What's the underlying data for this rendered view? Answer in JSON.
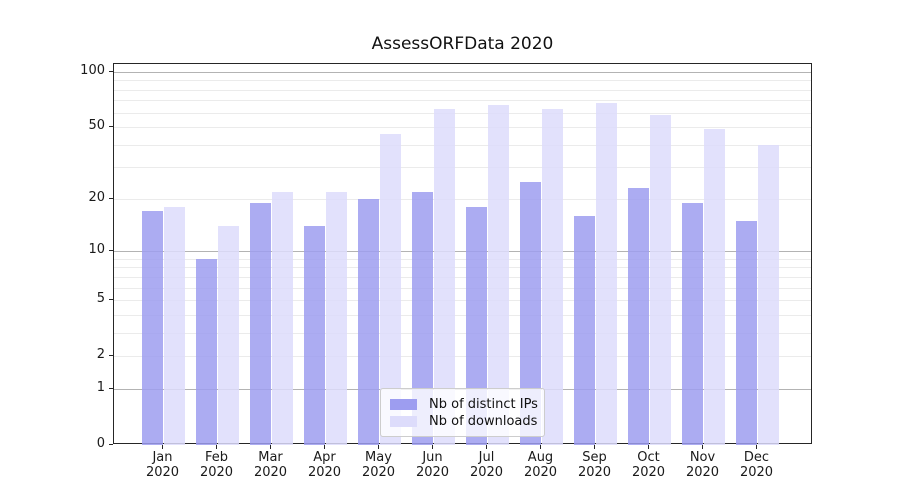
{
  "title": "AssessORFData 2020",
  "chart_data": {
    "type": "bar",
    "title": "AssessORFData 2020",
    "categories": [
      "Jan",
      "Feb",
      "Mar",
      "Apr",
      "May",
      "Jun",
      "Jul",
      "Aug",
      "Sep",
      "Oct",
      "Nov",
      "Dec"
    ],
    "x_sublabel": "2020",
    "series": [
      {
        "name": "Nb of distinct IPs",
        "color": "#9d9df0",
        "values": [
          17,
          9,
          19,
          14,
          20,
          22,
          18,
          25,
          16,
          23,
          19,
          15
        ]
      },
      {
        "name": "Nb of downloads",
        "color": "#dddcfb",
        "values": [
          18,
          14,
          22,
          22,
          46,
          63,
          66,
          63,
          68,
          58,
          49,
          40
        ]
      }
    ],
    "y_scale": "log1p",
    "ylim": [
      0,
      110
    ],
    "y_ticks": [
      0,
      1,
      2,
      5,
      10,
      20,
      50,
      100
    ],
    "y_minor_grid": [
      2,
      3,
      4,
      5,
      6,
      7,
      8,
      9,
      20,
      30,
      40,
      50,
      60,
      70,
      80,
      90
    ],
    "y_major_grid": [
      1,
      10,
      100
    ],
    "grid": true,
    "legend_position": "bottom-center",
    "xlabel": "",
    "ylabel": ""
  },
  "colors": {
    "grid_minor": "#ebebeb",
    "grid_major": "#b3b3b3",
    "spine": "#262626"
  }
}
